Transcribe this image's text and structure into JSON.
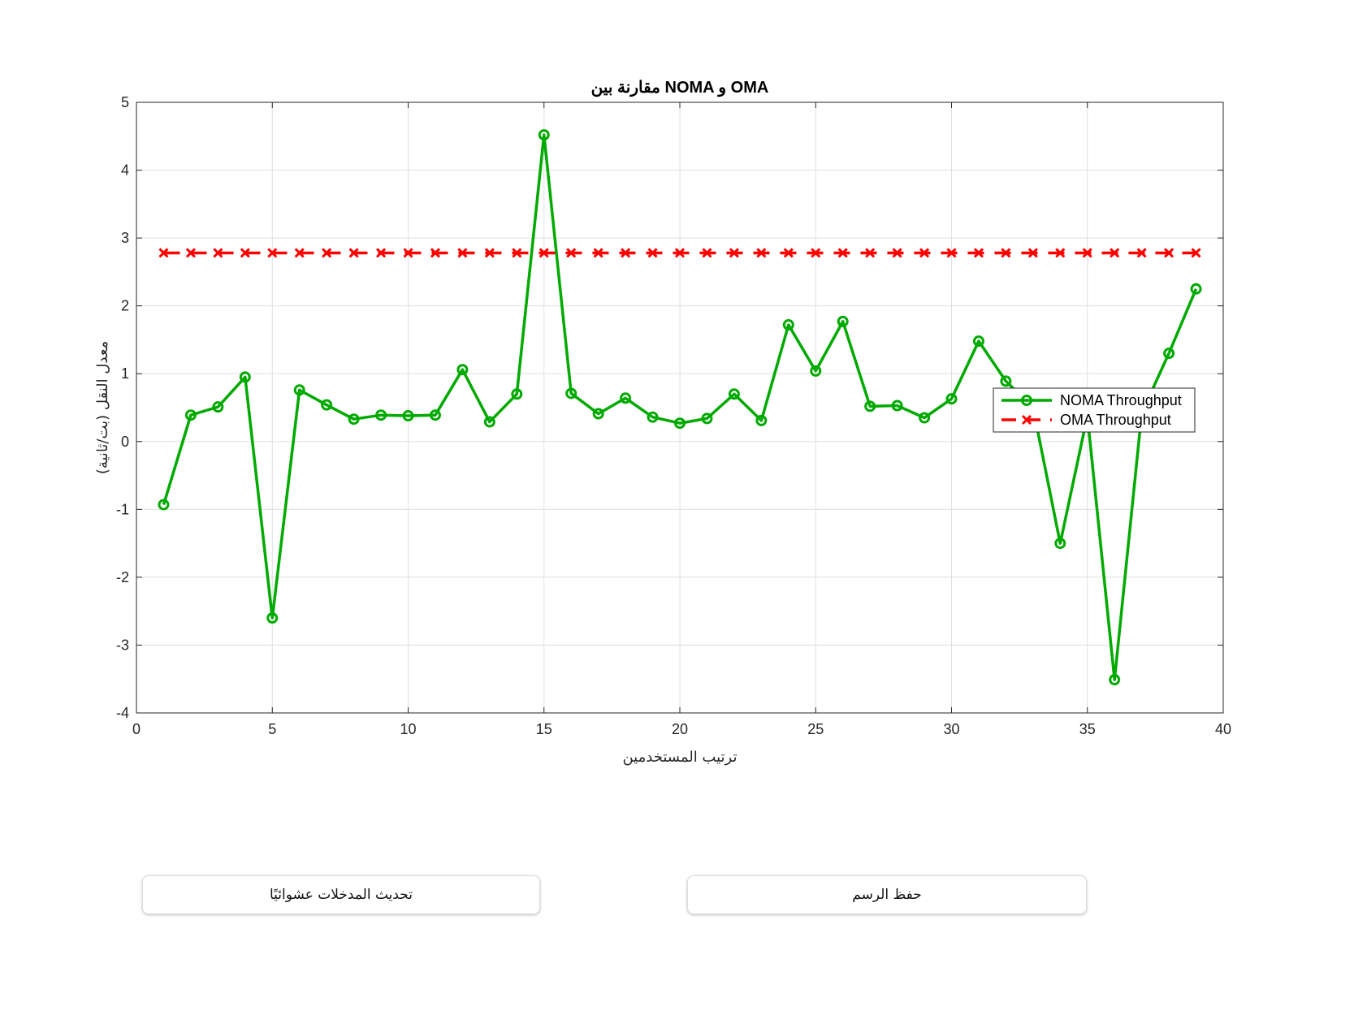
{
  "chart_data": {
    "type": "line",
    "title": "مقارنة بين NOMA و OMA",
    "xlabel": "ترتيب المستخدمين",
    "ylabel": "معدل النقل (بت/ثانية)",
    "xlim": [
      0,
      40
    ],
    "ylim": [
      -4,
      5
    ],
    "xticks": [
      0,
      5,
      10,
      15,
      20,
      25,
      30,
      35,
      40
    ],
    "yticks": [
      -4,
      -3,
      -2,
      -1,
      0,
      1,
      2,
      3,
      4,
      5
    ],
    "grid": true,
    "legend_position": "right",
    "x": [
      1,
      2,
      3,
      4,
      5,
      6,
      7,
      8,
      9,
      10,
      11,
      12,
      13,
      14,
      15,
      16,
      17,
      18,
      19,
      20,
      21,
      22,
      23,
      24,
      25,
      26,
      27,
      28,
      29,
      30,
      31,
      32,
      33,
      34,
      35,
      36,
      37,
      38,
      39
    ],
    "series": [
      {
        "name": "NOMA Throughput",
        "color": "#00aa00",
        "marker": "circle",
        "linestyle": "solid",
        "values": [
          -0.93,
          0.39,
          0.51,
          0.95,
          -2.6,
          0.76,
          0.54,
          0.33,
          0.39,
          0.38,
          0.39,
          1.06,
          0.29,
          0.7,
          4.52,
          0.71,
          0.41,
          0.64,
          0.36,
          0.27,
          0.34,
          0.7,
          0.31,
          1.72,
          1.04,
          1.77,
          0.52,
          0.53,
          0.35,
          0.63,
          1.48,
          0.89,
          0.5,
          -1.5,
          0.38,
          -3.51,
          0.42,
          1.3,
          2.25
        ]
      },
      {
        "name": "OMA Throughput",
        "color": "#ff0000",
        "marker": "x",
        "linestyle": "dashed",
        "values": [
          2.78,
          2.78,
          2.78,
          2.78,
          2.78,
          2.78,
          2.78,
          2.78,
          2.78,
          2.78,
          2.78,
          2.78,
          2.78,
          2.78,
          2.78,
          2.78,
          2.78,
          2.78,
          2.78,
          2.78,
          2.78,
          2.78,
          2.78,
          2.78,
          2.78,
          2.78,
          2.78,
          2.78,
          2.78,
          2.78,
          2.78,
          2.78,
          2.78,
          2.78,
          2.78,
          2.78,
          2.78,
          2.78,
          2.78
        ]
      }
    ]
  },
  "buttons": {
    "randomize_label": "تحديث المدخلات عشوائيًا",
    "save_label": "حفظ الرسم"
  }
}
